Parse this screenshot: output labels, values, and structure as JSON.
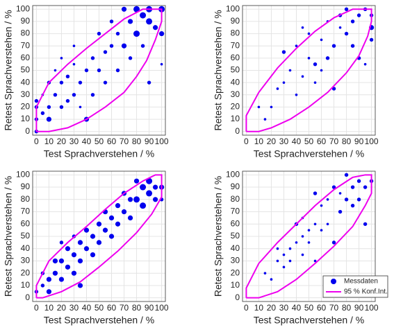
{
  "chart_data": [
    {
      "type": "scatter",
      "xlabel": "Test Sprachverstehen / %",
      "ylabel": "Retest Sprachverstehen / %",
      "xlim": [
        -3,
        103
      ],
      "ylim": [
        -3,
        103
      ],
      "xticks": [
        0,
        10,
        20,
        30,
        40,
        50,
        60,
        70,
        80,
        90,
        100
      ],
      "yticks": [
        0,
        10,
        20,
        30,
        40,
        50,
        60,
        70,
        80,
        90,
        100
      ],
      "grid": true,
      "series": [
        {
          "name": "Messdaten",
          "color": "#0000ee",
          "x": [
            0,
            0,
            0,
            0,
            5,
            5,
            10,
            10,
            10,
            15,
            15,
            20,
            20,
            20,
            25,
            25,
            30,
            30,
            30,
            35,
            35,
            40,
            40,
            45,
            45,
            50,
            50,
            55,
            55,
            60,
            60,
            65,
            65,
            70,
            70,
            75,
            75,
            80,
            80,
            85,
            85,
            90,
            90,
            95,
            100,
            100,
            90,
            100
          ],
          "y": [
            0,
            10,
            20,
            25,
            15,
            30,
            10,
            20,
            40,
            30,
            50,
            20,
            40,
            60,
            25,
            45,
            30,
            55,
            70,
            40,
            20,
            50,
            10,
            60,
            30,
            50,
            80,
            65,
            40,
            70,
            90,
            50,
            80,
            100,
            70,
            90,
            60,
            100,
            80,
            95,
            70,
            100,
            90,
            85,
            100,
            80,
            40,
            55
          ],
          "sizes": [
            3,
            3,
            3,
            3,
            3,
            2,
            4,
            3,
            3,
            3,
            2,
            3,
            3,
            2,
            3,
            3,
            3,
            2,
            2,
            3,
            2,
            3,
            4,
            3,
            3,
            3,
            3,
            3,
            3,
            3,
            3,
            3,
            3,
            4,
            4,
            4,
            3,
            5,
            5,
            5,
            3,
            5,
            5,
            4,
            5,
            4,
            3,
            2
          ]
        },
        {
          "name": "95 % Konf.Int.",
          "color": "#ee00ee",
          "type": "line",
          "x": [
            0,
            10,
            25,
            40,
            55,
            70,
            80,
            88,
            95,
            100,
            100,
            95,
            85,
            70,
            55,
            40,
            25,
            10,
            0,
            0
          ],
          "y": [
            0,
            0,
            3,
            10,
            20,
            32,
            45,
            58,
            75,
            90,
            100,
            100,
            100,
            92,
            80,
            68,
            55,
            40,
            20,
            0
          ]
        }
      ]
    },
    {
      "type": "scatter",
      "xlabel": "Test Sprachverstehen / %",
      "ylabel": "Retest Sprachverstehen / %",
      "xlim": [
        -3,
        103
      ],
      "ylim": [
        -3,
        103
      ],
      "xticks": [
        0,
        10,
        20,
        30,
        40,
        50,
        60,
        70,
        80,
        90,
        100
      ],
      "yticks": [
        0,
        10,
        20,
        30,
        40,
        50,
        60,
        70,
        80,
        90,
        100
      ],
      "grid": true,
      "series": [
        {
          "name": "Messdaten",
          "color": "#0000ee",
          "x": [
            10,
            15,
            20,
            25,
            30,
            30,
            35,
            40,
            40,
            45,
            45,
            50,
            50,
            55,
            55,
            60,
            60,
            65,
            65,
            70,
            70,
            75,
            75,
            80,
            80,
            85,
            85,
            90,
            90,
            95,
            100,
            100,
            100,
            95
          ],
          "y": [
            20,
            10,
            20,
            35,
            65,
            40,
            50,
            30,
            70,
            45,
            85,
            60,
            80,
            40,
            55,
            75,
            50,
            90,
            60,
            70,
            35,
            95,
            85,
            100,
            80,
            90,
            70,
            95,
            60,
            100,
            85,
            75,
            95,
            55
          ],
          "sizes": [
            2,
            2,
            2,
            2,
            3,
            2,
            2,
            2,
            2,
            2,
            2,
            2,
            2,
            2,
            3,
            2,
            2,
            2,
            3,
            3,
            3,
            3,
            2,
            3,
            3,
            3,
            3,
            3,
            3,
            3,
            4,
            3,
            3,
            2
          ]
        },
        {
          "name": "95 % Konf.Int.",
          "color": "#ee00ee",
          "type": "line",
          "x": [
            0,
            10,
            20,
            35,
            50,
            65,
            80,
            90,
            97,
            100,
            100,
            95,
            85,
            70,
            55,
            40,
            25,
            10,
            0,
            0
          ],
          "y": [
            0,
            0,
            3,
            10,
            20,
            32,
            48,
            62,
            78,
            90,
            100,
            100,
            100,
            93,
            82,
            68,
            52,
            32,
            13,
            0
          ]
        }
      ]
    },
    {
      "type": "scatter",
      "xlabel": "Test Sprachverstehen / %",
      "ylabel": "Retest Sprachverstehen / %",
      "xlim": [
        -3,
        103
      ],
      "ylim": [
        -3,
        103
      ],
      "xticks": [
        0,
        10,
        20,
        30,
        40,
        50,
        60,
        70,
        80,
        90,
        100
      ],
      "yticks": [
        0,
        10,
        20,
        30,
        40,
        50,
        60,
        70,
        80,
        90,
        100
      ],
      "grid": true,
      "series": [
        {
          "name": "Messdaten",
          "color": "#0000ee",
          "x": [
            0,
            5,
            5,
            10,
            10,
            15,
            15,
            20,
            20,
            25,
            25,
            30,
            30,
            35,
            35,
            40,
            40,
            45,
            45,
            50,
            50,
            55,
            55,
            60,
            60,
            65,
            65,
            70,
            70,
            75,
            75,
            80,
            80,
            85,
            85,
            90,
            90,
            95,
            95,
            100,
            100,
            35,
            30,
            20
          ],
          "y": [
            5,
            10,
            20,
            5,
            15,
            20,
            30,
            15,
            30,
            25,
            40,
            20,
            35,
            30,
            45,
            40,
            55,
            35,
            50,
            45,
            60,
            55,
            70,
            50,
            65,
            60,
            75,
            70,
            85,
            65,
            80,
            80,
            95,
            75,
            90,
            85,
            95,
            80,
            90,
            90,
            80,
            10,
            50,
            45
          ],
          "sizes": [
            3,
            3,
            3,
            4,
            4,
            4,
            4,
            4,
            4,
            4,
            4,
            4,
            4,
            4,
            4,
            4,
            4,
            4,
            4,
            4,
            4,
            4,
            4,
            4,
            4,
            4,
            4,
            4,
            4,
            4,
            4,
            5,
            4,
            5,
            5,
            5,
            5,
            4,
            4,
            4,
            3,
            4,
            3,
            3
          ]
        },
        {
          "name": "95 % Konf.Int.",
          "color": "#ee00ee",
          "type": "line",
          "x": [
            0,
            5,
            20,
            35,
            50,
            65,
            80,
            92,
            100,
            100,
            95,
            85,
            70,
            55,
            40,
            25,
            10,
            0,
            0
          ],
          "y": [
            0,
            0,
            5,
            13,
            25,
            38,
            53,
            68,
            82,
            100,
            100,
            95,
            85,
            72,
            58,
            45,
            30,
            10,
            0
          ]
        }
      ]
    },
    {
      "type": "scatter",
      "xlabel": "Test Sprachverstehen / %",
      "ylabel": "Retest Sprachverstehen / %",
      "xlim": [
        -3,
        103
      ],
      "ylim": [
        -3,
        103
      ],
      "xticks": [
        0,
        10,
        20,
        30,
        40,
        50,
        60,
        70,
        80,
        90,
        100
      ],
      "yticks": [
        0,
        10,
        20,
        30,
        40,
        50,
        60,
        70,
        80,
        90,
        100
      ],
      "grid": true,
      "legend": "lower right",
      "series": [
        {
          "name": "Messdaten",
          "color": "#0000ee",
          "x": [
            15,
            20,
            25,
            25,
            30,
            30,
            35,
            35,
            40,
            40,
            45,
            45,
            50,
            50,
            55,
            55,
            60,
            60,
            65,
            65,
            70,
            70,
            75,
            75,
            80,
            80,
            85,
            85,
            90,
            90,
            95,
            95,
            100,
            45,
            55
          ],
          "y": [
            20,
            15,
            40,
            30,
            35,
            25,
            40,
            30,
            60,
            45,
            50,
            35,
            55,
            45,
            85,
            60,
            75,
            55,
            80,
            60,
            90,
            45,
            85,
            70,
            100,
            80,
            90,
            75,
            95,
            80,
            90,
            60,
            95,
            65,
            30
          ],
          "sizes": [
            2,
            2,
            2,
            2,
            2,
            2,
            2,
            2,
            3,
            2,
            2,
            2,
            2,
            2,
            3,
            2,
            2,
            2,
            2,
            2,
            3,
            3,
            2,
            3,
            3,
            3,
            3,
            3,
            3,
            3,
            3,
            3,
            3,
            2,
            2
          ]
        },
        {
          "name": "95 % Konf.Int.",
          "color": "#ee00ee",
          "type": "line",
          "x": [
            0,
            10,
            25,
            40,
            55,
            70,
            85,
            95,
            100,
            100,
            95,
            85,
            70,
            55,
            40,
            25,
            10,
            0,
            0
          ],
          "y": [
            0,
            0,
            5,
            15,
            28,
            42,
            58,
            75,
            85,
            100,
            100,
            98,
            88,
            75,
            60,
            45,
            28,
            8,
            0
          ]
        }
      ]
    }
  ]
}
